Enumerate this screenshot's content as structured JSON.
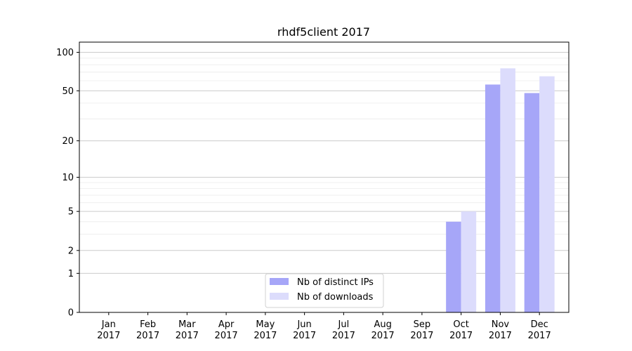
{
  "chart_data": {
    "type": "bar",
    "title": "rhdf5client 2017",
    "xlabel": "",
    "ylabel": "",
    "yscale": "log(1+y)",
    "ylim": [
      0,
      120
    ],
    "y_ticks": [
      0,
      1,
      2,
      5,
      10,
      20,
      50,
      100
    ],
    "grid": true,
    "legend_position": "lower-center",
    "categories": [
      [
        "Jan",
        "2017"
      ],
      [
        "Feb",
        "2017"
      ],
      [
        "Mar",
        "2017"
      ],
      [
        "Apr",
        "2017"
      ],
      [
        "May",
        "2017"
      ],
      [
        "Jun",
        "2017"
      ],
      [
        "Jul",
        "2017"
      ],
      [
        "Aug",
        "2017"
      ],
      [
        "Sep",
        "2017"
      ],
      [
        "Oct",
        "2017"
      ],
      [
        "Nov",
        "2017"
      ],
      [
        "Dec",
        "2017"
      ]
    ],
    "series": [
      {
        "name": "Nb of distinct IPs",
        "color": "#a6a6f8",
        "values": [
          0,
          0,
          0,
          0,
          0,
          0,
          0,
          0,
          0,
          4,
          56,
          48
        ]
      },
      {
        "name": "Nb of downloads",
        "color": "#dcdcfc",
        "values": [
          0,
          0,
          0,
          0,
          0,
          0,
          0,
          0,
          0,
          5,
          75,
          65
        ]
      }
    ]
  }
}
